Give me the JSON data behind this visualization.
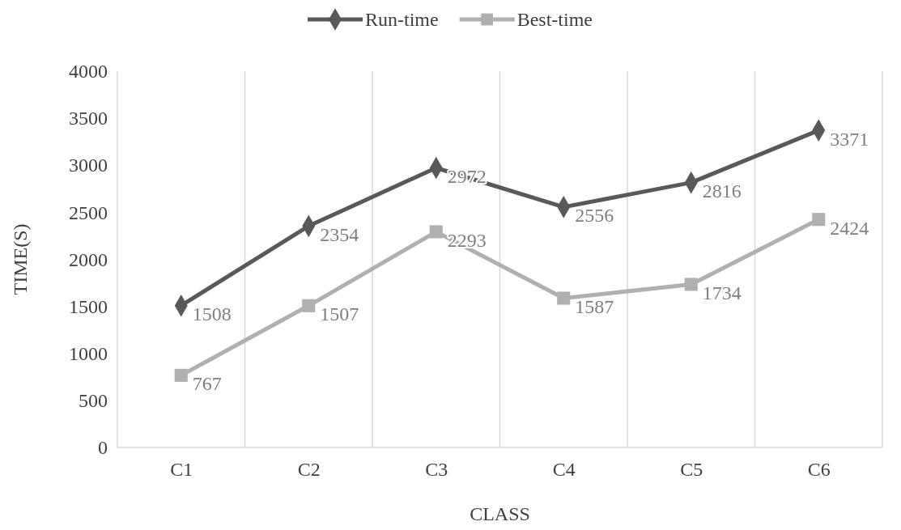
{
  "chart_data": {
    "type": "line",
    "xlabel": "CLASS",
    "ylabel": "TIME(S)",
    "categories": [
      "C1",
      "C2",
      "C3",
      "C4",
      "C5",
      "C6"
    ],
    "series": [
      {
        "name": "Run-time",
        "color": "#595959",
        "marker": "diamond",
        "values": [
          1508,
          2354,
          2972,
          2556,
          2816,
          3371
        ]
      },
      {
        "name": "Best-time",
        "color": "#b0b0b0",
        "marker": "square",
        "values": [
          767,
          1507,
          2293,
          1587,
          1734,
          2424
        ]
      }
    ],
    "ylim": [
      0,
      4000
    ],
    "yticks": [
      0,
      500,
      1000,
      1500,
      2000,
      2500,
      3000,
      3500,
      4000
    ],
    "grid": "x",
    "legend": "top",
    "data_labels": true,
    "line_style": "solid"
  }
}
